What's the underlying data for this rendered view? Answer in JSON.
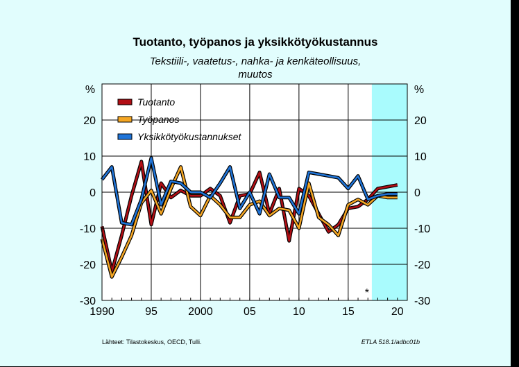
{
  "chart_data": {
    "type": "line",
    "title": "Tuotanto, työpanos ja yksikkötyökustannus",
    "subtitle_line1": "Tekstiili-, vaatetus-, nahka- ja kenkäteollisuus,",
    "subtitle_line2": "muutos",
    "ylabel_left": "%",
    "ylabel_right": "%",
    "ylim": [
      -30,
      30
    ],
    "y_ticks": [
      20,
      10,
      0,
      -10,
      -20,
      -30
    ],
    "xlim": [
      1990,
      2021
    ],
    "x_ticks": [
      1990,
      1995,
      2000,
      2005,
      2010,
      2015,
      2020
    ],
    "x_tick_labels": [
      "1990",
      "95",
      "2000",
      "05",
      "10",
      "15",
      "20"
    ],
    "x_grid": [
      1990,
      1995,
      2000,
      2005,
      2010,
      2015
    ],
    "y_grid": [
      30,
      20,
      10,
      0,
      -10,
      -20,
      -30
    ],
    "forecast_start": 2017.4,
    "forecast_marker": "*",
    "forecast_color": "#a9fbfd",
    "legend_position": "top-left",
    "series": [
      {
        "name": "Tuotanto",
        "color": "#b20e15",
        "x": [
          1990,
          1991,
          1992,
          1993,
          1994,
          1995,
          1996,
          1997,
          1998,
          1999,
          2000,
          2001,
          2002,
          2003,
          2004,
          2005,
          2006,
          2007,
          2008,
          2009,
          2010,
          2011,
          2012,
          2013,
          2014,
          2015,
          2016,
          2017,
          2018,
          2019,
          2020
        ],
        "values": [
          -9.5,
          -22,
          -12,
          -1,
          8.5,
          -9,
          2.5,
          -1.5,
          0.5,
          -1,
          -1,
          1,
          -1,
          -8.5,
          -1,
          -0.5,
          5.5,
          -6,
          1,
          -13.5,
          1,
          -1,
          -6,
          -11,
          -9,
          -4.5,
          -4,
          -2,
          1,
          1.5,
          2
        ]
      },
      {
        "name": "Työpanos",
        "color": "#f5a623",
        "x": [
          1990,
          1991,
          1992,
          1993,
          1994,
          1995,
          1996,
          1997,
          1998,
          1999,
          2000,
          2001,
          2002,
          2003,
          2004,
          2005,
          2006,
          2007,
          2008,
          2009,
          2010,
          2011,
          2012,
          2013,
          2014,
          2015,
          2016,
          2017,
          2018,
          2019,
          2020
        ],
        "values": [
          -13,
          -23.5,
          -18,
          -12,
          -3,
          0.5,
          -6,
          1,
          7,
          -4,
          -6.5,
          -1,
          -3.5,
          -7,
          -7,
          -3.5,
          -2.5,
          -6.5,
          -4.5,
          -5,
          -10,
          2.5,
          -7,
          -9,
          -12,
          -3.5,
          -2,
          -3.5,
          -1,
          -1.5,
          -1.5
        ]
      },
      {
        "name": "Yksikkötyökustannukset",
        "color": "#1f74d8",
        "x": [
          1990,
          1991,
          1992,
          1993,
          1994,
          1995,
          1996,
          1997,
          1998,
          1999,
          2000,
          2001,
          2002,
          2003,
          2004,
          2005,
          2006,
          2007,
          2008,
          2009,
          2010,
          2011,
          2012,
          2013,
          2014,
          2015,
          2016,
          2017,
          2018,
          2019,
          2020
        ],
        "values": [
          3.5,
          7,
          -8.5,
          -9,
          -2,
          9.5,
          -3.5,
          3,
          2.5,
          0,
          0,
          -1.5,
          2.5,
          7,
          -4.5,
          0,
          -6,
          5,
          -1.5,
          -1.5,
          -6,
          5.5,
          5,
          4.5,
          4,
          1,
          4.5,
          -2,
          -1,
          -0.5,
          -0.5
        ]
      }
    ]
  },
  "footer": {
    "source": "Lähteet:  Tilastokeskus, OECD, Tulli.",
    "code": "ETLA 518.1/adbc01b"
  }
}
